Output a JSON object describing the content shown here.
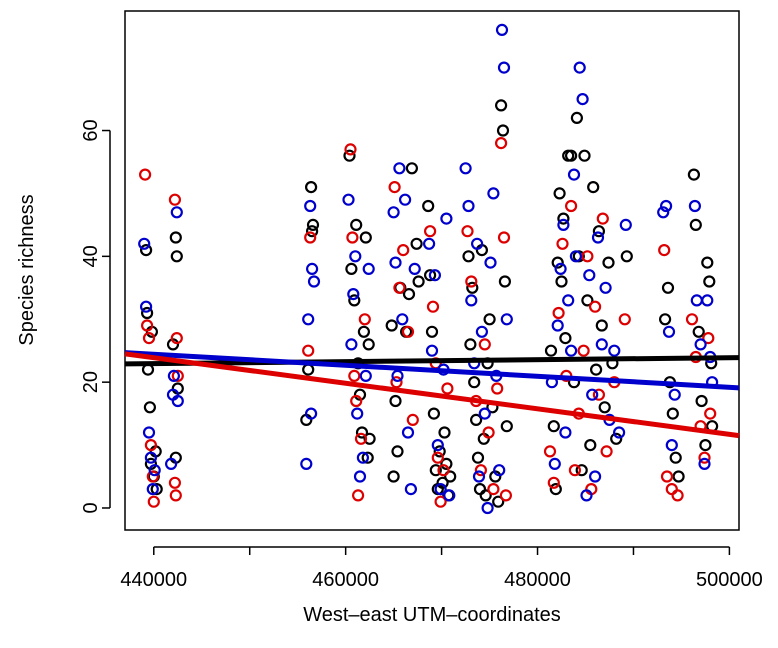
{
  "chart_data": {
    "type": "scatter",
    "xlabel": "West–east UTM–coordinates",
    "ylabel": "Species richness",
    "xlim": [
      437000,
      501000
    ],
    "ylim": [
      -3.5,
      79
    ],
    "x_ticks": [
      440000,
      460000,
      480000,
      500000
    ],
    "x_tick_labels": [
      "440000",
      "460000",
      "480000",
      "500000"
    ],
    "y_ticks": [
      0,
      20,
      40,
      60
    ],
    "y_tick_labels": [
      "0",
      "20",
      "40",
      "60"
    ],
    "grid": false,
    "legend": "none",
    "series": [
      {
        "color": "#000000",
        "points": [
          [
            439200,
            41
          ],
          [
            439300,
            31
          ],
          [
            439400,
            22
          ],
          [
            439600,
            16
          ],
          [
            439700,
            7
          ],
          [
            439800,
            28
          ],
          [
            440000,
            5
          ],
          [
            440200,
            9
          ],
          [
            440300,
            3
          ],
          [
            442000,
            26
          ],
          [
            442300,
            43
          ],
          [
            442400,
            40
          ],
          [
            442500,
            19
          ],
          [
            442300,
            8
          ],
          [
            455900,
            14
          ],
          [
            456100,
            22
          ],
          [
            456400,
            51
          ],
          [
            456500,
            44
          ],
          [
            456600,
            45
          ],
          [
            460400,
            56
          ],
          [
            460600,
            38
          ],
          [
            460900,
            33
          ],
          [
            461100,
            45
          ],
          [
            461300,
            23
          ],
          [
            461500,
            18
          ],
          [
            461700,
            12
          ],
          [
            461900,
            28
          ],
          [
            462100,
            43
          ],
          [
            462300,
            8
          ],
          [
            462500,
            11
          ],
          [
            462400,
            26
          ],
          [
            464800,
            29
          ],
          [
            465000,
            5
          ],
          [
            465200,
            17
          ],
          [
            465400,
            9
          ],
          [
            465700,
            35
          ],
          [
            466300,
            28
          ],
          [
            466600,
            34
          ],
          [
            466900,
            54
          ],
          [
            467400,
            42
          ],
          [
            467600,
            36
          ],
          [
            468600,
            48
          ],
          [
            468800,
            37
          ],
          [
            469000,
            28
          ],
          [
            469200,
            15
          ],
          [
            469400,
            6
          ],
          [
            469600,
            3
          ],
          [
            469800,
            9
          ],
          [
            470100,
            4
          ],
          [
            470300,
            12
          ],
          [
            470500,
            7
          ],
          [
            470700,
            2
          ],
          [
            470900,
            5
          ],
          [
            472800,
            40
          ],
          [
            473000,
            26
          ],
          [
            473200,
            35
          ],
          [
            473400,
            20
          ],
          [
            473600,
            14
          ],
          [
            473800,
            8
          ],
          [
            474000,
            3
          ],
          [
            474200,
            41
          ],
          [
            474400,
            11
          ],
          [
            474600,
            2
          ],
          [
            474800,
            23
          ],
          [
            475000,
            30
          ],
          [
            475300,
            16
          ],
          [
            475600,
            5
          ],
          [
            475900,
            1
          ],
          [
            476200,
            64
          ],
          [
            476400,
            60
          ],
          [
            476600,
            36
          ],
          [
            476800,
            13
          ],
          [
            481400,
            25
          ],
          [
            481700,
            13
          ],
          [
            481900,
            3
          ],
          [
            482100,
            39
          ],
          [
            482300,
            50
          ],
          [
            482500,
            36
          ],
          [
            482700,
            46
          ],
          [
            482900,
            27
          ],
          [
            483200,
            56
          ],
          [
            483500,
            56
          ],
          [
            483800,
            20
          ],
          [
            484100,
            62
          ],
          [
            484300,
            40
          ],
          [
            484600,
            6
          ],
          [
            484900,
            56
          ],
          [
            485200,
            33
          ],
          [
            485500,
            10
          ],
          [
            485800,
            51
          ],
          [
            486100,
            22
          ],
          [
            486400,
            44
          ],
          [
            486700,
            29
          ],
          [
            487000,
            16
          ],
          [
            487400,
            39
          ],
          [
            487800,
            23
          ],
          [
            488200,
            11
          ],
          [
            489300,
            40
          ],
          [
            493300,
            30
          ],
          [
            493600,
            35
          ],
          [
            493800,
            20
          ],
          [
            494100,
            15
          ],
          [
            494400,
            8
          ],
          [
            494700,
            5
          ],
          [
            496300,
            53
          ],
          [
            496500,
            45
          ],
          [
            496800,
            28
          ],
          [
            497100,
            17
          ],
          [
            497500,
            10
          ],
          [
            497700,
            39
          ],
          [
            497900,
            36
          ],
          [
            498100,
            23
          ],
          [
            498200,
            13
          ]
        ]
      },
      {
        "color": "#dd0000",
        "points": [
          [
            439100,
            53
          ],
          [
            439300,
            29
          ],
          [
            439500,
            27
          ],
          [
            439700,
            10
          ],
          [
            439900,
            5
          ],
          [
            440000,
            1
          ],
          [
            442200,
            49
          ],
          [
            442400,
            27
          ],
          [
            442500,
            21
          ],
          [
            442200,
            4
          ],
          [
            442300,
            2
          ],
          [
            456100,
            25
          ],
          [
            456300,
            43
          ],
          [
            460500,
            57
          ],
          [
            460700,
            43
          ],
          [
            460900,
            21
          ],
          [
            461100,
            17
          ],
          [
            461300,
            2
          ],
          [
            461600,
            11
          ],
          [
            462000,
            30
          ],
          [
            465100,
            51
          ],
          [
            465300,
            20
          ],
          [
            465600,
            35
          ],
          [
            466000,
            41
          ],
          [
            466500,
            28
          ],
          [
            467000,
            14
          ],
          [
            468800,
            44
          ],
          [
            469100,
            32
          ],
          [
            469400,
            23
          ],
          [
            469600,
            8
          ],
          [
            469900,
            1
          ],
          [
            470200,
            6
          ],
          [
            470600,
            19
          ],
          [
            472700,
            44
          ],
          [
            473100,
            36
          ],
          [
            473600,
            17
          ],
          [
            474100,
            6
          ],
          [
            474500,
            26
          ],
          [
            474900,
            12
          ],
          [
            475400,
            3
          ],
          [
            475800,
            19
          ],
          [
            476200,
            58
          ],
          [
            476500,
            43
          ],
          [
            476700,
            2
          ],
          [
            481300,
            9
          ],
          [
            481700,
            4
          ],
          [
            482200,
            31
          ],
          [
            482600,
            42
          ],
          [
            483000,
            21
          ],
          [
            483500,
            48
          ],
          [
            483900,
            6
          ],
          [
            484300,
            15
          ],
          [
            484800,
            25
          ],
          [
            485200,
            40
          ],
          [
            485600,
            3
          ],
          [
            486000,
            32
          ],
          [
            486400,
            18
          ],
          [
            486800,
            46
          ],
          [
            487200,
            9
          ],
          [
            488000,
            20
          ],
          [
            489100,
            30
          ],
          [
            493200,
            41
          ],
          [
            493500,
            5
          ],
          [
            494000,
            3
          ],
          [
            494600,
            2
          ],
          [
            496100,
            30
          ],
          [
            496500,
            24
          ],
          [
            497000,
            13
          ],
          [
            497400,
            8
          ],
          [
            497800,
            27
          ],
          [
            498000,
            15
          ]
        ]
      },
      {
        "color": "#0000cc",
        "points": [
          [
            439000,
            42
          ],
          [
            439200,
            32
          ],
          [
            439500,
            12
          ],
          [
            439700,
            8
          ],
          [
            439900,
            3
          ],
          [
            440100,
            6
          ],
          [
            441800,
            7
          ],
          [
            442000,
            18
          ],
          [
            442100,
            21
          ],
          [
            442400,
            47
          ],
          [
            442500,
            17
          ],
          [
            455900,
            7
          ],
          [
            456100,
            30
          ],
          [
            456300,
            48
          ],
          [
            456500,
            38
          ],
          [
            456700,
            36
          ],
          [
            456400,
            15
          ],
          [
            460300,
            49
          ],
          [
            460600,
            26
          ],
          [
            460800,
            34
          ],
          [
            461000,
            40
          ],
          [
            461200,
            15
          ],
          [
            461500,
            5
          ],
          [
            461800,
            8
          ],
          [
            462100,
            21
          ],
          [
            462400,
            38
          ],
          [
            465000,
            47
          ],
          [
            465200,
            39
          ],
          [
            465400,
            21
          ],
          [
            465600,
            54
          ],
          [
            465900,
            30
          ],
          [
            466200,
            49
          ],
          [
            466500,
            12
          ],
          [
            466800,
            3
          ],
          [
            467200,
            38
          ],
          [
            468700,
            42
          ],
          [
            469000,
            25
          ],
          [
            469300,
            37
          ],
          [
            469600,
            10
          ],
          [
            469900,
            3
          ],
          [
            470200,
            22
          ],
          [
            470500,
            46
          ],
          [
            470800,
            2
          ],
          [
            472500,
            54
          ],
          [
            472800,
            48
          ],
          [
            473100,
            33
          ],
          [
            473400,
            23
          ],
          [
            473700,
            42
          ],
          [
            473900,
            5
          ],
          [
            474200,
            28
          ],
          [
            474500,
            15
          ],
          [
            474800,
            0
          ],
          [
            475100,
            39
          ],
          [
            475400,
            50
          ],
          [
            475700,
            21
          ],
          [
            476000,
            6
          ],
          [
            476300,
            76
          ],
          [
            476500,
            70
          ],
          [
            476800,
            30
          ],
          [
            481500,
            20
          ],
          [
            481800,
            7
          ],
          [
            482100,
            29
          ],
          [
            482400,
            38
          ],
          [
            482700,
            45
          ],
          [
            482900,
            12
          ],
          [
            483200,
            33
          ],
          [
            483500,
            25
          ],
          [
            483800,
            53
          ],
          [
            484000,
            40
          ],
          [
            484400,
            70
          ],
          [
            484700,
            65
          ],
          [
            485100,
            2
          ],
          [
            485400,
            37
          ],
          [
            485700,
            18
          ],
          [
            486000,
            5
          ],
          [
            486300,
            43
          ],
          [
            486700,
            26
          ],
          [
            487100,
            35
          ],
          [
            487500,
            14
          ],
          [
            488000,
            25
          ],
          [
            488500,
            12
          ],
          [
            489200,
            45
          ],
          [
            493100,
            47
          ],
          [
            493400,
            48
          ],
          [
            493700,
            28
          ],
          [
            494000,
            10
          ],
          [
            494300,
            18
          ],
          [
            496400,
            48
          ],
          [
            496600,
            33
          ],
          [
            497000,
            26
          ],
          [
            497400,
            7
          ],
          [
            497700,
            33
          ],
          [
            498000,
            24
          ],
          [
            498200,
            20
          ]
        ]
      }
    ],
    "lines": [
      {
        "color": "#000000",
        "from": [
          437000,
          22.9
        ],
        "to": [
          501000,
          23.9
        ]
      },
      {
        "color": "#0000cc",
        "from": [
          437000,
          24.7
        ],
        "to": [
          501000,
          19.1
        ]
      },
      {
        "color": "#dd0000",
        "from": [
          437000,
          24.5
        ],
        "to": [
          501000,
          11.5
        ]
      }
    ]
  }
}
